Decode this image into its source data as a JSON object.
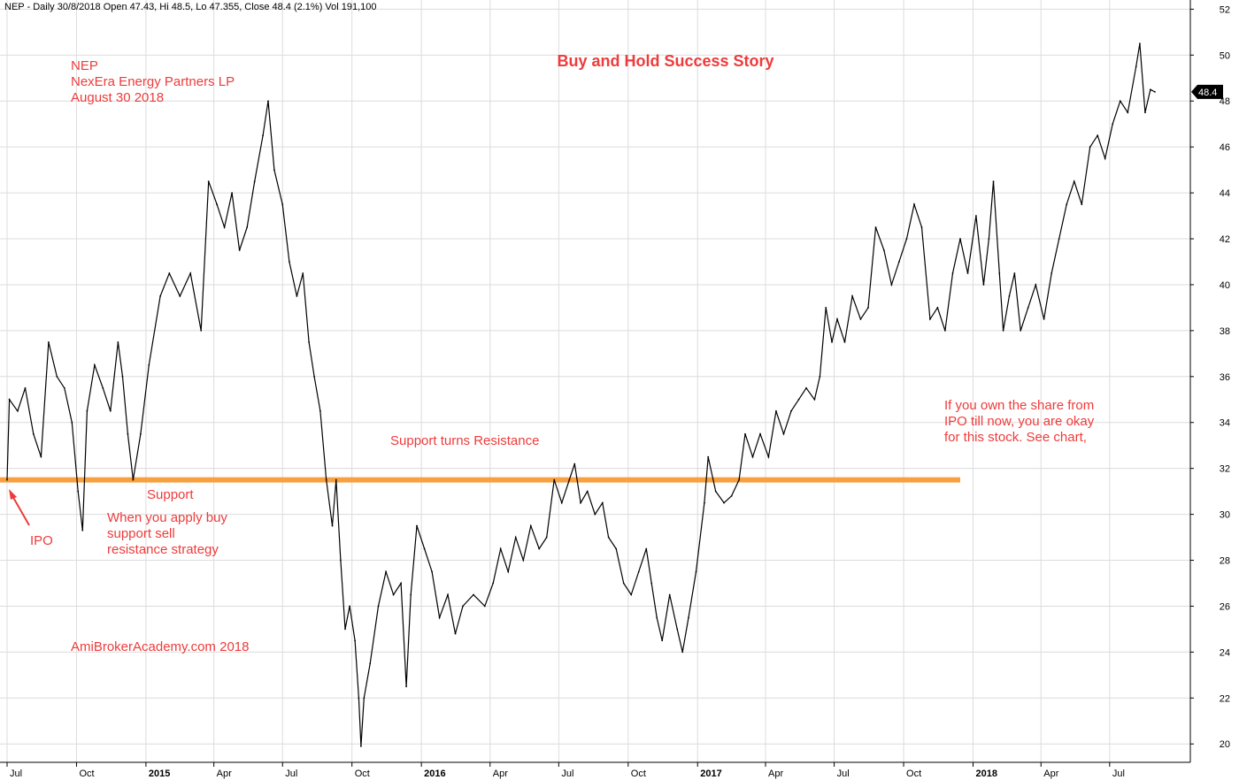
{
  "header": {
    "text": "NEP - Daily 30/8/2018 Open 47.43, Hi 48.5, Lo 47.355, Close 48.4 (2.1%) Vol 191,100"
  },
  "colors": {
    "price_line": "#000000",
    "support_line": "#f7a040",
    "annotation": "#ee3b3b",
    "grid": "#dcdcdc",
    "price_tag_bg": "#000000"
  },
  "annotations": {
    "symbol": "NEP",
    "company": "NexEra Energy Partners LP",
    "date": "August 30 2018",
    "title": "Buy and Hold Success Story",
    "support_resistance": "Support turns Resistance",
    "support": "Support",
    "strategy_line1": "When you apply buy",
    "strategy_line2": "support sell",
    "strategy_line3": "resistance strategy",
    "ipo": "IPO",
    "owner_line1": "If you own the share from",
    "owner_line2": "IPO till now, you are okay",
    "owner_line3": "for this stock. See chart,",
    "website": "AmiBrokerAcademy.com  2018"
  },
  "last_price_label": "48.4",
  "chart_data": {
    "type": "line",
    "title": "Buy and Hold Success Story",
    "xlabel": "",
    "ylabel": "",
    "ylim": [
      19.2,
      52.4
    ],
    "y_ticks": [
      20,
      22,
      24,
      26,
      28,
      30,
      32,
      34,
      36,
      38,
      40,
      42,
      44,
      46,
      48,
      50,
      52
    ],
    "x_range": [
      "2014-07-01",
      "2018-08-30"
    ],
    "x_ticks": [
      {
        "date": "2014-07-01",
        "label": "Jul",
        "bold": false
      },
      {
        "date": "2014-10-01",
        "label": "Oct",
        "bold": false
      },
      {
        "date": "2015-01-01",
        "label": "2015",
        "bold": true
      },
      {
        "date": "2015-04-01",
        "label": "Apr",
        "bold": false
      },
      {
        "date": "2015-07-01",
        "label": "Jul",
        "bold": false
      },
      {
        "date": "2015-10-01",
        "label": "Oct",
        "bold": false
      },
      {
        "date": "2016-01-01",
        "label": "2016",
        "bold": true
      },
      {
        "date": "2016-04-01",
        "label": "Apr",
        "bold": false
      },
      {
        "date": "2016-07-01",
        "label": "Jul",
        "bold": false
      },
      {
        "date": "2016-10-01",
        "label": "Oct",
        "bold": false
      },
      {
        "date": "2017-01-01",
        "label": "2017",
        "bold": true
      },
      {
        "date": "2017-04-01",
        "label": "Apr",
        "bold": false
      },
      {
        "date": "2017-07-01",
        "label": "Jul",
        "bold": false
      },
      {
        "date": "2017-10-01",
        "label": "Oct",
        "bold": false
      },
      {
        "date": "2018-01-01",
        "label": "2018",
        "bold": true
      },
      {
        "date": "2018-04-01",
        "label": "Apr",
        "bold": false
      },
      {
        "date": "2018-07-01",
        "label": "Jul",
        "bold": false
      }
    ],
    "grid": true,
    "support_line": {
      "value": 31.5,
      "x_start": "2014-07-01",
      "x_end": "2017-12-15"
    },
    "series": [
      {
        "values": [
          {
            "x": "2014-07-01",
            "y": 31.5
          },
          {
            "x": "2014-07-04",
            "y": 35.0
          },
          {
            "x": "2014-07-15",
            "y": 34.5
          },
          {
            "x": "2014-07-25",
            "y": 35.5
          },
          {
            "x": "2014-08-05",
            "y": 33.5
          },
          {
            "x": "2014-08-15",
            "y": 32.5
          },
          {
            "x": "2014-08-25",
            "y": 37.5
          },
          {
            "x": "2014-09-05",
            "y": 36.0
          },
          {
            "x": "2014-09-15",
            "y": 35.5
          },
          {
            "x": "2014-09-25",
            "y": 34.0
          },
          {
            "x": "2014-10-03",
            "y": 31.0
          },
          {
            "x": "2014-10-09",
            "y": 29.3
          },
          {
            "x": "2014-10-15",
            "y": 34.5
          },
          {
            "x": "2014-10-25",
            "y": 36.5
          },
          {
            "x": "2014-11-05",
            "y": 35.5
          },
          {
            "x": "2014-11-15",
            "y": 34.5
          },
          {
            "x": "2014-11-25",
            "y": 37.5
          },
          {
            "x": "2014-12-01",
            "y": 36.0
          },
          {
            "x": "2014-12-08",
            "y": 33.5
          },
          {
            "x": "2014-12-15",
            "y": 31.5
          },
          {
            "x": "2014-12-25",
            "y": 33.5
          },
          {
            "x": "2015-01-05",
            "y": 36.5
          },
          {
            "x": "2015-01-20",
            "y": 39.5
          },
          {
            "x": "2015-02-01",
            "y": 40.5
          },
          {
            "x": "2015-02-15",
            "y": 39.5
          },
          {
            "x": "2015-03-01",
            "y": 40.5
          },
          {
            "x": "2015-03-15",
            "y": 38.0
          },
          {
            "x": "2015-03-25",
            "y": 44.5
          },
          {
            "x": "2015-04-05",
            "y": 43.5
          },
          {
            "x": "2015-04-15",
            "y": 42.5
          },
          {
            "x": "2015-04-25",
            "y": 44.0
          },
          {
            "x": "2015-05-05",
            "y": 41.5
          },
          {
            "x": "2015-05-15",
            "y": 42.5
          },
          {
            "x": "2015-05-25",
            "y": 44.5
          },
          {
            "x": "2015-06-05",
            "y": 46.5
          },
          {
            "x": "2015-06-12",
            "y": 48.0
          },
          {
            "x": "2015-06-20",
            "y": 45.0
          },
          {
            "x": "2015-07-01",
            "y": 43.5
          },
          {
            "x": "2015-07-10",
            "y": 41.0
          },
          {
            "x": "2015-07-20",
            "y": 39.5
          },
          {
            "x": "2015-07-28",
            "y": 40.5
          },
          {
            "x": "2015-08-05",
            "y": 37.5
          },
          {
            "x": "2015-08-12",
            "y": 36.0
          },
          {
            "x": "2015-08-20",
            "y": 34.5
          },
          {
            "x": "2015-08-28",
            "y": 31.5
          },
          {
            "x": "2015-09-05",
            "y": 29.5
          },
          {
            "x": "2015-09-10",
            "y": 31.5
          },
          {
            "x": "2015-09-16",
            "y": 28.0
          },
          {
            "x": "2015-09-22",
            "y": 25.0
          },
          {
            "x": "2015-09-28",
            "y": 26.0
          },
          {
            "x": "2015-10-05",
            "y": 24.5
          },
          {
            "x": "2015-10-10",
            "y": 22.0
          },
          {
            "x": "2015-10-13",
            "y": 19.9
          },
          {
            "x": "2015-10-17",
            "y": 22.0
          },
          {
            "x": "2015-10-25",
            "y": 23.5
          },
          {
            "x": "2015-11-05",
            "y": 26.0
          },
          {
            "x": "2015-11-15",
            "y": 27.5
          },
          {
            "x": "2015-11-25",
            "y": 26.5
          },
          {
            "x": "2015-12-05",
            "y": 27.0
          },
          {
            "x": "2015-12-12",
            "y": 22.5
          },
          {
            "x": "2015-12-18",
            "y": 26.5
          },
          {
            "x": "2015-12-26",
            "y": 29.5
          },
          {
            "x": "2016-01-05",
            "y": 28.5
          },
          {
            "x": "2016-01-15",
            "y": 27.5
          },
          {
            "x": "2016-01-25",
            "y": 25.5
          },
          {
            "x": "2016-02-05",
            "y": 26.5
          },
          {
            "x": "2016-02-15",
            "y": 24.8
          },
          {
            "x": "2016-02-25",
            "y": 26.0
          },
          {
            "x": "2016-03-10",
            "y": 26.5
          },
          {
            "x": "2016-03-25",
            "y": 26.0
          },
          {
            "x": "2016-04-05",
            "y": 27.0
          },
          {
            "x": "2016-04-15",
            "y": 28.5
          },
          {
            "x": "2016-04-25",
            "y": 27.5
          },
          {
            "x": "2016-05-05",
            "y": 29.0
          },
          {
            "x": "2016-05-15",
            "y": 28.0
          },
          {
            "x": "2016-05-25",
            "y": 29.5
          },
          {
            "x": "2016-06-05",
            "y": 28.5
          },
          {
            "x": "2016-06-15",
            "y": 29.0
          },
          {
            "x": "2016-06-25",
            "y": 31.5
          },
          {
            "x": "2016-07-05",
            "y": 30.5
          },
          {
            "x": "2016-07-15",
            "y": 31.5
          },
          {
            "x": "2016-07-22",
            "y": 32.2
          },
          {
            "x": "2016-07-30",
            "y": 30.5
          },
          {
            "x": "2016-08-08",
            "y": 31.0
          },
          {
            "x": "2016-08-18",
            "y": 30.0
          },
          {
            "x": "2016-08-28",
            "y": 30.5
          },
          {
            "x": "2016-09-05",
            "y": 29.0
          },
          {
            "x": "2016-09-15",
            "y": 28.5
          },
          {
            "x": "2016-09-25",
            "y": 27.0
          },
          {
            "x": "2016-10-05",
            "y": 26.5
          },
          {
            "x": "2016-10-15",
            "y": 27.5
          },
          {
            "x": "2016-10-25",
            "y": 28.5
          },
          {
            "x": "2016-11-01",
            "y": 27.0
          },
          {
            "x": "2016-11-08",
            "y": 25.5
          },
          {
            "x": "2016-11-15",
            "y": 24.5
          },
          {
            "x": "2016-11-25",
            "y": 26.5
          },
          {
            "x": "2016-12-05",
            "y": 25.0
          },
          {
            "x": "2016-12-12",
            "y": 24.0
          },
          {
            "x": "2016-12-20",
            "y": 25.5
          },
          {
            "x": "2016-12-30",
            "y": 27.5
          },
          {
            "x": "2017-01-10",
            "y": 30.5
          },
          {
            "x": "2017-01-15",
            "y": 32.5
          },
          {
            "x": "2017-01-25",
            "y": 31.0
          },
          {
            "x": "2017-02-05",
            "y": 30.5
          },
          {
            "x": "2017-02-15",
            "y": 30.8
          },
          {
            "x": "2017-02-25",
            "y": 31.5
          },
          {
            "x": "2017-03-05",
            "y": 33.5
          },
          {
            "x": "2017-03-15",
            "y": 32.5
          },
          {
            "x": "2017-03-25",
            "y": 33.5
          },
          {
            "x": "2017-04-05",
            "y": 32.5
          },
          {
            "x": "2017-04-15",
            "y": 34.5
          },
          {
            "x": "2017-04-25",
            "y": 33.5
          },
          {
            "x": "2017-05-05",
            "y": 34.5
          },
          {
            "x": "2017-05-15",
            "y": 35.0
          },
          {
            "x": "2017-05-25",
            "y": 35.5
          },
          {
            "x": "2017-06-05",
            "y": 35.0
          },
          {
            "x": "2017-06-12",
            "y": 36.0
          },
          {
            "x": "2017-06-20",
            "y": 39.0
          },
          {
            "x": "2017-06-28",
            "y": 37.5
          },
          {
            "x": "2017-07-05",
            "y": 38.5
          },
          {
            "x": "2017-07-15",
            "y": 37.5
          },
          {
            "x": "2017-07-25",
            "y": 39.5
          },
          {
            "x": "2017-08-05",
            "y": 38.5
          },
          {
            "x": "2017-08-15",
            "y": 39.0
          },
          {
            "x": "2017-08-25",
            "y": 42.5
          },
          {
            "x": "2017-09-05",
            "y": 41.5
          },
          {
            "x": "2017-09-15",
            "y": 40.0
          },
          {
            "x": "2017-09-25",
            "y": 41.0
          },
          {
            "x": "2017-10-05",
            "y": 42.0
          },
          {
            "x": "2017-10-15",
            "y": 43.5
          },
          {
            "x": "2017-10-25",
            "y": 42.5
          },
          {
            "x": "2017-11-05",
            "y": 38.5
          },
          {
            "x": "2017-11-15",
            "y": 39.0
          },
          {
            "x": "2017-11-25",
            "y": 38.0
          },
          {
            "x": "2017-12-05",
            "y": 40.5
          },
          {
            "x": "2017-12-15",
            "y": 42.0
          },
          {
            "x": "2017-12-25",
            "y": 40.5
          },
          {
            "x": "2018-01-05",
            "y": 43.0
          },
          {
            "x": "2018-01-15",
            "y": 40.0
          },
          {
            "x": "2018-01-22",
            "y": 42.0
          },
          {
            "x": "2018-01-28",
            "y": 44.5
          },
          {
            "x": "2018-02-05",
            "y": 40.5
          },
          {
            "x": "2018-02-10",
            "y": 38.0
          },
          {
            "x": "2018-02-18",
            "y": 39.5
          },
          {
            "x": "2018-02-25",
            "y": 40.5
          },
          {
            "x": "2018-03-05",
            "y": 38.0
          },
          {
            "x": "2018-03-15",
            "y": 39.0
          },
          {
            "x": "2018-03-25",
            "y": 40.0
          },
          {
            "x": "2018-04-05",
            "y": 38.5
          },
          {
            "x": "2018-04-15",
            "y": 40.5
          },
          {
            "x": "2018-04-25",
            "y": 42.0
          },
          {
            "x": "2018-05-05",
            "y": 43.5
          },
          {
            "x": "2018-05-15",
            "y": 44.5
          },
          {
            "x": "2018-05-25",
            "y": 43.5
          },
          {
            "x": "2018-06-05",
            "y": 46.0
          },
          {
            "x": "2018-06-15",
            "y": 46.5
          },
          {
            "x": "2018-06-25",
            "y": 45.5
          },
          {
            "x": "2018-07-05",
            "y": 47.0
          },
          {
            "x": "2018-07-15",
            "y": 48.0
          },
          {
            "x": "2018-07-25",
            "y": 47.5
          },
          {
            "x": "2018-08-05",
            "y": 49.5
          },
          {
            "x": "2018-08-10",
            "y": 50.5
          },
          {
            "x": "2018-08-17",
            "y": 47.5
          },
          {
            "x": "2018-08-24",
            "y": 48.5
          },
          {
            "x": "2018-08-30",
            "y": 48.4
          }
        ]
      }
    ]
  }
}
